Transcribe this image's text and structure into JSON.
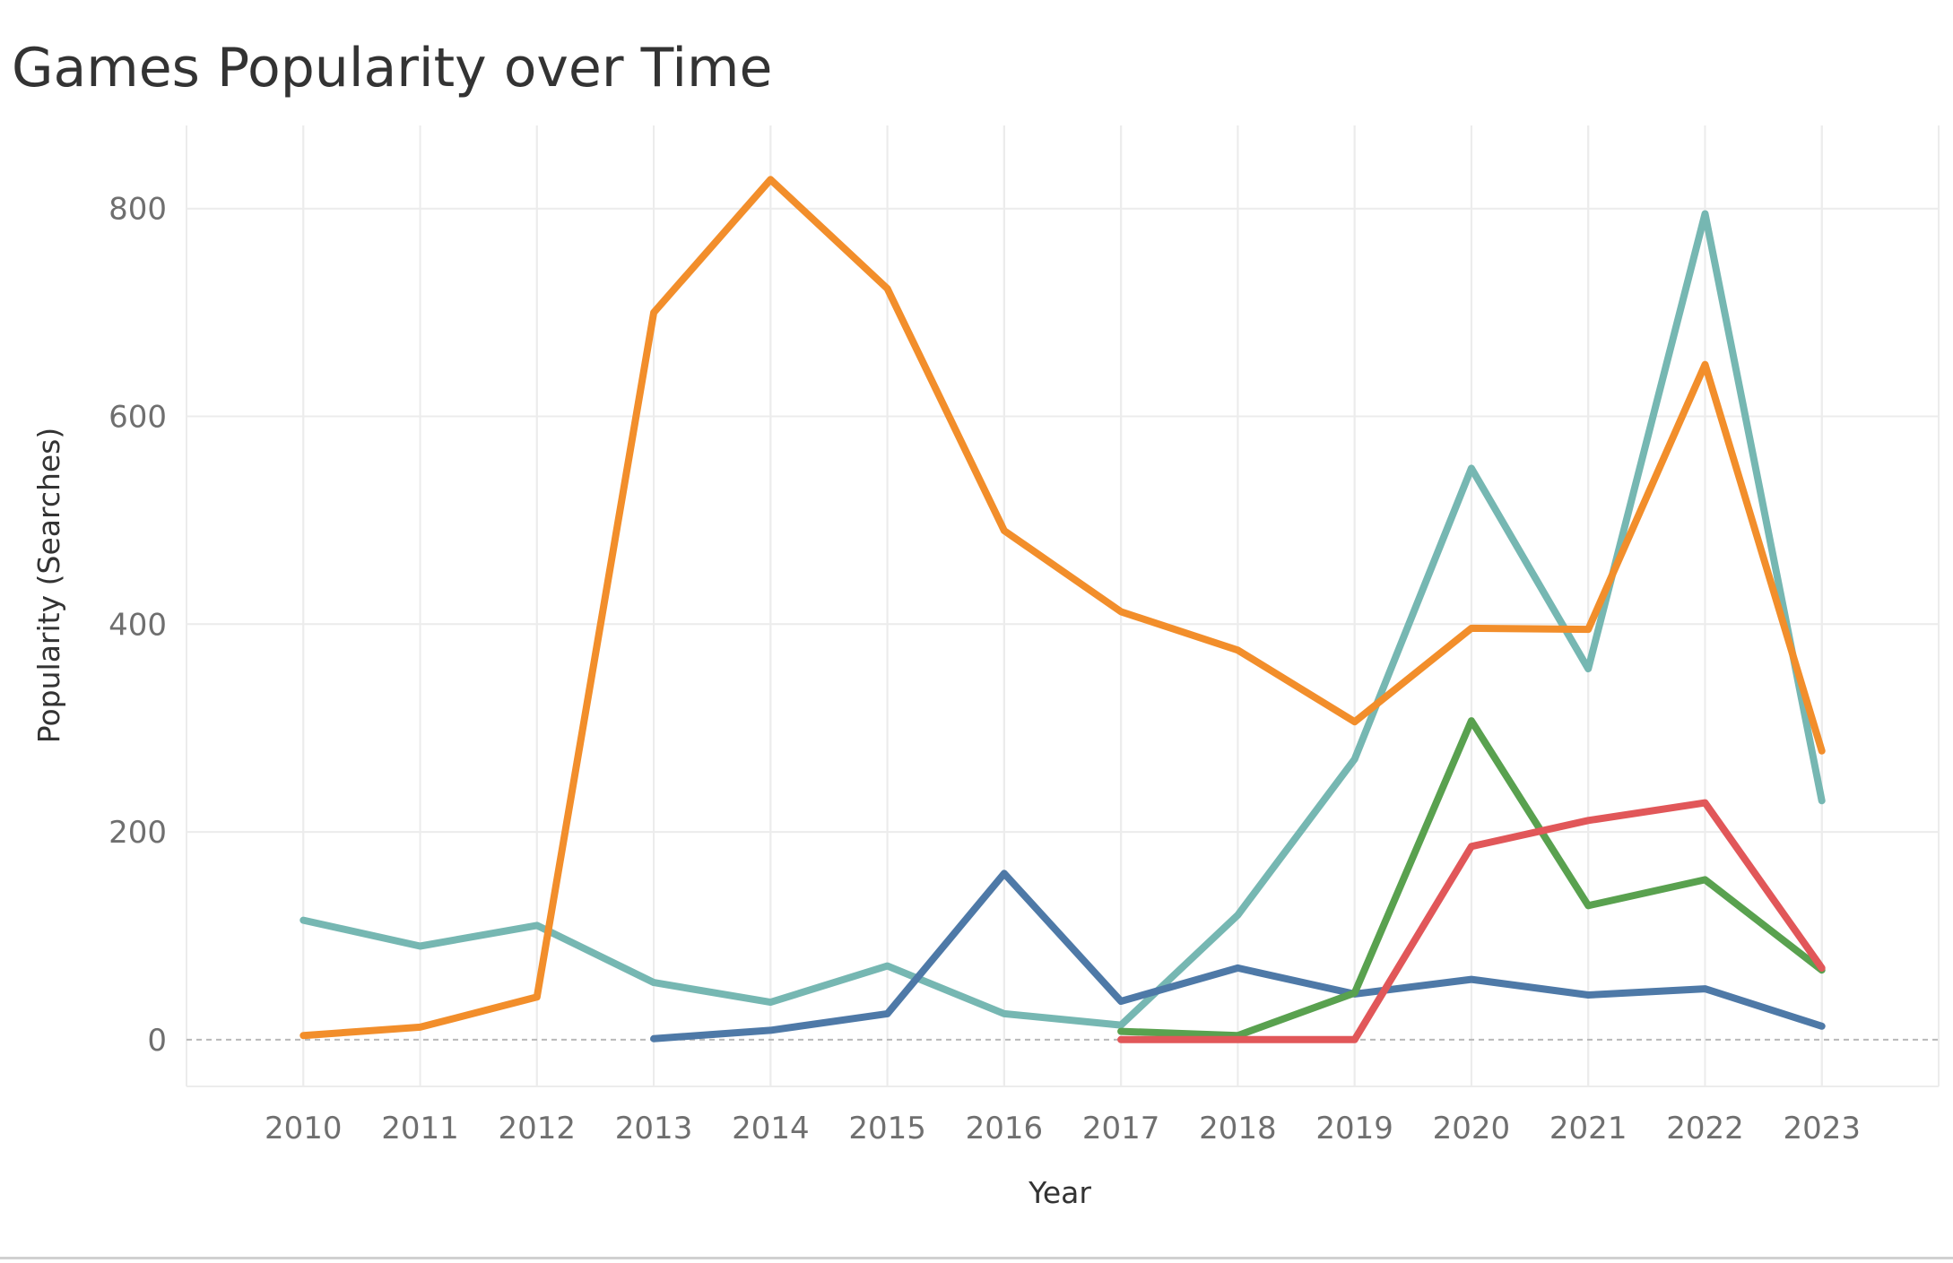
{
  "chart_data": {
    "type": "line",
    "title": "Games Popularity over Time",
    "xlabel": "Year",
    "ylabel": "Popularity (Searches)",
    "x": [
      2010,
      2011,
      2012,
      2013,
      2014,
      2015,
      2016,
      2017,
      2018,
      2019,
      2020,
      2021,
      2022,
      2023
    ],
    "xlim": [
      2009,
      2024
    ],
    "ylim": [
      -45,
      880
    ],
    "yticks": [
      0,
      200,
      400,
      600,
      800
    ],
    "grid": true,
    "legend": "none",
    "series": [
      {
        "color": "#76b7b2",
        "values": [
          115,
          90,
          110,
          55,
          36,
          71,
          25,
          14,
          120,
          270,
          550,
          357,
          795,
          230
        ]
      },
      {
        "color": "#f28e2b",
        "values": [
          4,
          12,
          41,
          700,
          828,
          723,
          490,
          412,
          375,
          306,
          396,
          395,
          650,
          278
        ]
      },
      {
        "color": "#4e79a7",
        "values": [
          null,
          null,
          null,
          1,
          9,
          25,
          160,
          37,
          69,
          44,
          58,
          43,
          49,
          13
        ]
      },
      {
        "color": "#59a14f",
        "values": [
          null,
          null,
          null,
          null,
          null,
          null,
          null,
          8,
          4,
          45,
          307,
          129,
          154,
          67
        ]
      },
      {
        "color": "#e15759",
        "values": [
          null,
          null,
          null,
          null,
          null,
          null,
          null,
          0,
          0,
          0,
          186,
          211,
          228,
          69
        ]
      }
    ]
  }
}
